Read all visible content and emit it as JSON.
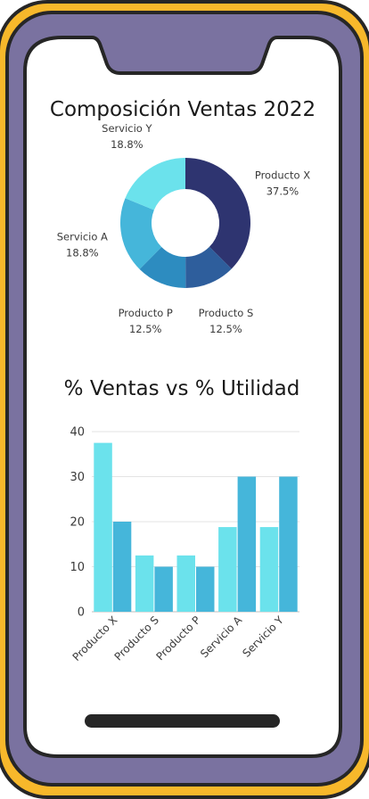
{
  "colors": {
    "frame_outer": "#F7B82B",
    "frame_body": "#7A72A0",
    "frame_stroke": "#262626",
    "screen": "#FFFFFF",
    "home_bar": "#262626"
  },
  "chart_data": [
    {
      "type": "pie",
      "donut": true,
      "title": "Composición Ventas 2022",
      "slices": [
        {
          "label": "Producto X",
          "value": 37.5,
          "display": "37.5%",
          "color": "#2E3470"
        },
        {
          "label": "Producto S",
          "value": 12.5,
          "display": "12.5%",
          "color": "#2E5E9C"
        },
        {
          "label": "Producto P",
          "value": 12.5,
          "display": "12.5%",
          "color": "#2D8CC0"
        },
        {
          "label": "Servicio A",
          "value": 18.8,
          "display": "18.8%",
          "color": "#45B6DA"
        },
        {
          "label": "Servicio Y",
          "value": 18.8,
          "display": "18.8%",
          "color": "#6BE2EC"
        }
      ]
    },
    {
      "type": "bar",
      "title": "% Ventas vs % Utilidad",
      "categories": [
        "Producto X",
        "Producto S",
        "Producto P",
        "Servicio A",
        "Servicio Y"
      ],
      "series": [
        {
          "values": [
            37.5,
            12.5,
            12.5,
            18.8,
            18.8
          ],
          "color": "#6BE2EC"
        },
        {
          "values": [
            20,
            10,
            10,
            30,
            30
          ],
          "color": "#45B6DA"
        }
      ],
      "ylim": [
        0,
        40
      ],
      "yticks": [
        0,
        10,
        20,
        30,
        40
      ],
      "grid": true
    }
  ]
}
